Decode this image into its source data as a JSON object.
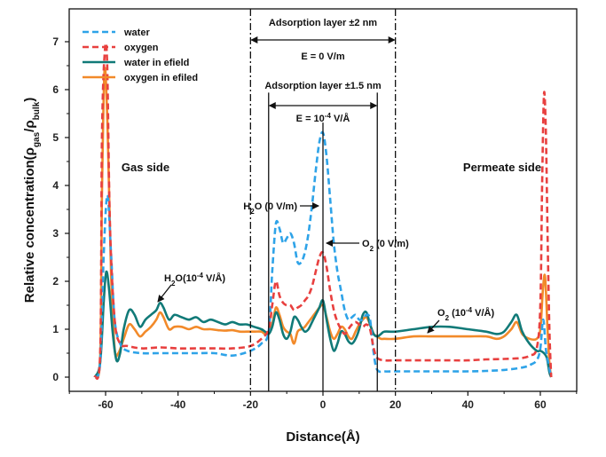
{
  "chart_data": {
    "type": "line",
    "title": "",
    "xlabel": "Distance(Å)",
    "ylabel": "Relative concentration(ρgas/ρbulk)",
    "ylabel_parts": {
      "main": "Relative concentration(ρ",
      "sub1": "gas",
      "mid": "/ρ",
      "sub2": "bulk",
      "end": ")"
    },
    "xlim": [
      -70,
      70
    ],
    "ylim": [
      -0.3,
      7.3
    ],
    "xticks": [
      -60,
      -40,
      -20,
      0,
      20,
      40,
      60
    ],
    "xtick_labels": [
      "-60",
      "-40",
      "-20",
      "0",
      "20",
      "40",
      "60"
    ],
    "yticks": [
      0,
      1,
      2,
      3,
      4,
      5,
      6,
      7
    ],
    "ytick_labels": [
      "0",
      "1",
      "2",
      "3",
      "4",
      "5",
      "6",
      "7"
    ],
    "grid": false,
    "legend_position": "top-left",
    "series": [
      {
        "name": "water",
        "color": "#2ea3e8",
        "style": "dashed",
        "x": [
          -63,
          -61.5,
          -60.5,
          -59.5,
          -58.5,
          -57.5,
          -56,
          -54,
          -50,
          -45,
          -40,
          -35,
          -30,
          -25,
          -20,
          -17,
          -15,
          -14,
          -13,
          -12,
          -11,
          -10,
          -9,
          -8,
          -7,
          -6,
          -5,
          -4,
          -3,
          -2,
          -1,
          0,
          1,
          2,
          3,
          4,
          5,
          6,
          7,
          8,
          9,
          10,
          11,
          12,
          13,
          14,
          15,
          17,
          20,
          25,
          30,
          35,
          40,
          45,
          50,
          55,
          57,
          59,
          60,
          60.8,
          61.5,
          62.2,
          63
        ],
        "y": [
          0,
          0.3,
          2.6,
          3.8,
          2.6,
          1.2,
          0.7,
          0.55,
          0.5,
          0.5,
          0.5,
          0.5,
          0.5,
          0.45,
          0.55,
          0.7,
          0.95,
          2.2,
          3.2,
          3.1,
          2.8,
          2.9,
          3.0,
          2.8,
          2.4,
          2.4,
          2.6,
          3.0,
          3.6,
          4.3,
          4.9,
          5.1,
          4.6,
          3.7,
          2.8,
          2.2,
          1.8,
          1.4,
          1.2,
          1.25,
          1.3,
          1.2,
          1.2,
          1.3,
          1.2,
          0.5,
          0.15,
          0.12,
          0.12,
          0.12,
          0.12,
          0.12,
          0.12,
          0.13,
          0.15,
          0.2,
          0.25,
          0.35,
          0.6,
          1.2,
          0.6,
          0.3,
          0
        ]
      },
      {
        "name": "oxygen",
        "color": "#e8403f",
        "style": "dashed",
        "x": [
          -63,
          -61.5,
          -61,
          -60.3,
          -59.6,
          -58.8,
          -57.5,
          -56,
          -54,
          -50,
          -45,
          -40,
          -35,
          -30,
          -25,
          -20,
          -17,
          -15,
          -14,
          -13,
          -12,
          -11,
          -10,
          -9,
          -8,
          -7,
          -6,
          -5,
          -4,
          -3,
          -2,
          -1,
          0,
          1,
          2,
          3,
          4,
          5,
          6,
          7,
          8,
          9,
          10,
          11,
          12,
          13,
          14,
          15,
          17,
          20,
          25,
          30,
          35,
          40,
          45,
          50,
          55,
          57,
          59,
          60,
          60.5,
          61,
          61.5,
          62,
          62.5,
          63
        ],
        "y": [
          0,
          0.5,
          5.0,
          6.7,
          6.6,
          3.2,
          1.2,
          0.7,
          0.65,
          0.6,
          0.62,
          0.6,
          0.6,
          0.6,
          0.6,
          0.65,
          0.8,
          1.0,
          1.5,
          2.0,
          1.7,
          1.55,
          1.5,
          1.5,
          1.4,
          1.45,
          1.5,
          1.6,
          1.7,
          1.9,
          2.2,
          2.5,
          2.6,
          2.3,
          1.8,
          1.4,
          1.15,
          1.0,
          0.9,
          1.0,
          1.1,
          1.15,
          1.1,
          1.05,
          1.1,
          1.0,
          0.6,
          0.4,
          0.35,
          0.35,
          0.35,
          0.35,
          0.35,
          0.35,
          0.37,
          0.38,
          0.4,
          0.45,
          0.6,
          1.5,
          4.0,
          5.9,
          5.2,
          3.0,
          1.0,
          0
        ]
      },
      {
        "name": "water in efield",
        "color": "#117a78",
        "style": "solid",
        "x": [
          -63,
          -61.5,
          -60.5,
          -59.8,
          -59,
          -58,
          -57,
          -56,
          -55,
          -53.5,
          -52,
          -50.5,
          -49,
          -47.5,
          -46,
          -45,
          -44,
          -42.5,
          -41,
          -39,
          -37,
          -35,
          -33,
          -31,
          -29,
          -27,
          -25,
          -23,
          -21,
          -19,
          -17,
          -16,
          -15,
          -14,
          -13,
          -12,
          -11,
          -10,
          -9,
          -8,
          -7,
          -6,
          -5,
          -4,
          -3,
          -2,
          -1,
          0,
          1,
          2,
          3,
          4,
          5,
          6,
          7,
          8,
          9,
          10,
          11,
          12,
          13,
          14,
          15,
          16,
          17,
          20,
          25,
          30,
          35,
          40,
          45,
          48,
          50,
          52,
          53.5,
          55,
          57,
          59,
          60,
          61,
          61.8,
          62.5,
          63
        ],
        "y": [
          0,
          0.3,
          1.6,
          2.2,
          1.8,
          0.9,
          0.35,
          0.5,
          1.0,
          1.4,
          1.3,
          1.05,
          1.2,
          1.3,
          1.4,
          1.55,
          1.45,
          1.2,
          1.3,
          1.25,
          1.2,
          1.25,
          1.15,
          1.2,
          1.15,
          1.1,
          1.15,
          1.1,
          1.1,
          1.05,
          1.0,
          0.95,
          0.9,
          1.05,
          1.35,
          1.2,
          0.9,
          0.8,
          0.95,
          1.25,
          1.2,
          1.05,
          0.95,
          1.0,
          1.15,
          1.3,
          1.45,
          1.6,
          1.2,
          0.8,
          0.55,
          0.7,
          0.95,
          0.9,
          0.75,
          0.7,
          0.8,
          1.0,
          1.3,
          1.35,
          1.1,
          0.9,
          0.85,
          0.9,
          0.95,
          0.95,
          1.0,
          1.05,
          1.05,
          1.0,
          0.95,
          0.9,
          0.95,
          1.15,
          1.3,
          0.95,
          0.7,
          0.55,
          0.55,
          0.5,
          0.4,
          0.1,
          0
        ]
      },
      {
        "name": "oxygen in efiled",
        "color": "#f28a2a",
        "style": "solid",
        "x": [
          -63,
          -61.5,
          -61,
          -60.3,
          -59.5,
          -58.5,
          -57.5,
          -56.5,
          -55,
          -53.5,
          -52,
          -50.5,
          -49,
          -47.5,
          -46,
          -45,
          -44,
          -42.5,
          -41,
          -39,
          -37,
          -35,
          -33,
          -31,
          -29,
          -27,
          -25,
          -23,
          -21,
          -19,
          -17,
          -16,
          -15,
          -14,
          -13,
          -12,
          -11,
          -10,
          -9,
          -8,
          -7,
          -6,
          -5,
          -4,
          -3,
          -2,
          -1,
          0,
          1,
          2,
          3,
          4,
          5,
          6,
          7,
          8,
          9,
          10,
          11,
          12,
          13,
          14,
          15,
          16,
          17,
          20,
          25,
          30,
          35,
          40,
          45,
          48,
          50,
          52,
          53.5,
          55,
          57,
          59,
          60,
          60.7,
          61.3,
          62,
          62.5,
          63
        ],
        "y": [
          0,
          0.4,
          3.8,
          6.4,
          5.3,
          2.2,
          0.6,
          0.5,
          0.8,
          1.1,
          1.0,
          0.85,
          0.95,
          1.05,
          1.2,
          1.35,
          1.25,
          1.0,
          1.05,
          1.05,
          1.0,
          1.05,
          1.0,
          1.0,
          0.98,
          0.97,
          0.98,
          0.95,
          0.95,
          0.95,
          0.95,
          0.9,
          0.95,
          1.1,
          1.45,
          1.3,
          1.05,
          0.95,
          0.9,
          0.7,
          0.95,
          1.0,
          1.05,
          1.15,
          1.25,
          1.35,
          1.45,
          1.5,
          1.25,
          0.95,
          0.8,
          0.9,
          1.05,
          1.0,
          0.85,
          0.8,
          0.95,
          1.1,
          1.2,
          1.25,
          1.1,
          0.9,
          0.85,
          0.8,
          0.8,
          0.8,
          0.85,
          0.85,
          0.85,
          0.85,
          0.85,
          0.8,
          0.85,
          1.0,
          1.15,
          0.9,
          0.8,
          0.8,
          1.0,
          1.8,
          2.1,
          1.0,
          0.3,
          0
        ]
      }
    ],
    "vertical_lines": [
      {
        "x": -20,
        "style": "dash-dot",
        "color": "#111111"
      },
      {
        "x": 20,
        "style": "dash-dot",
        "color": "#111111"
      },
      {
        "x": -15,
        "style": "solid",
        "color": "#111111"
      },
      {
        "x": 15,
        "style": "solid",
        "color": "#111111"
      },
      {
        "x": 0,
        "style": "solid",
        "color": "#111111"
      }
    ],
    "annotations": [
      {
        "name": "adsorption-2nm",
        "text": "Adsorption layer ±2 nm",
        "range": [
          -20,
          20
        ],
        "y": 7.0
      },
      {
        "name": "efield-0",
        "text": "E = 0 V/m",
        "y": 6.55
      },
      {
        "name": "adsorption-1p5nm",
        "text": "Adsorption layer ±1.5 nm",
        "range": [
          -15,
          15
        ],
        "y": 5.9
      },
      {
        "name": "efield-1e-4",
        "text_main": "E = 10",
        "text_sup": "-4",
        "text_end": " V/Å",
        "y": 5.35
      },
      {
        "name": "gas-side",
        "text": "Gas side",
        "x": -47,
        "y": 4.35
      },
      {
        "name": "permeate-side",
        "text": "Permeate side",
        "x": 50,
        "y": 4.35
      },
      {
        "name": "h2o-0",
        "text": "H2O (0 V/m)",
        "x": -14,
        "y": 3.55,
        "arrow_to": [
          -1,
          3.6
        ]
      },
      {
        "name": "o2-0",
        "text": "O2 (0 V/m)",
        "x": 10,
        "y": 2.75,
        "arrow_to": [
          1,
          2.75
        ]
      },
      {
        "name": "h2o-efield",
        "text": "H2O(10-4 V/Å)",
        "x": -48,
        "y": 1.95,
        "arrow_to": [
          -45,
          1.55
        ]
      },
      {
        "name": "o2-efield",
        "text": "O2 (10-4 V/Å)",
        "x": 32,
        "y": 1.45,
        "arrow_to": [
          29,
          0.9
        ]
      }
    ]
  }
}
